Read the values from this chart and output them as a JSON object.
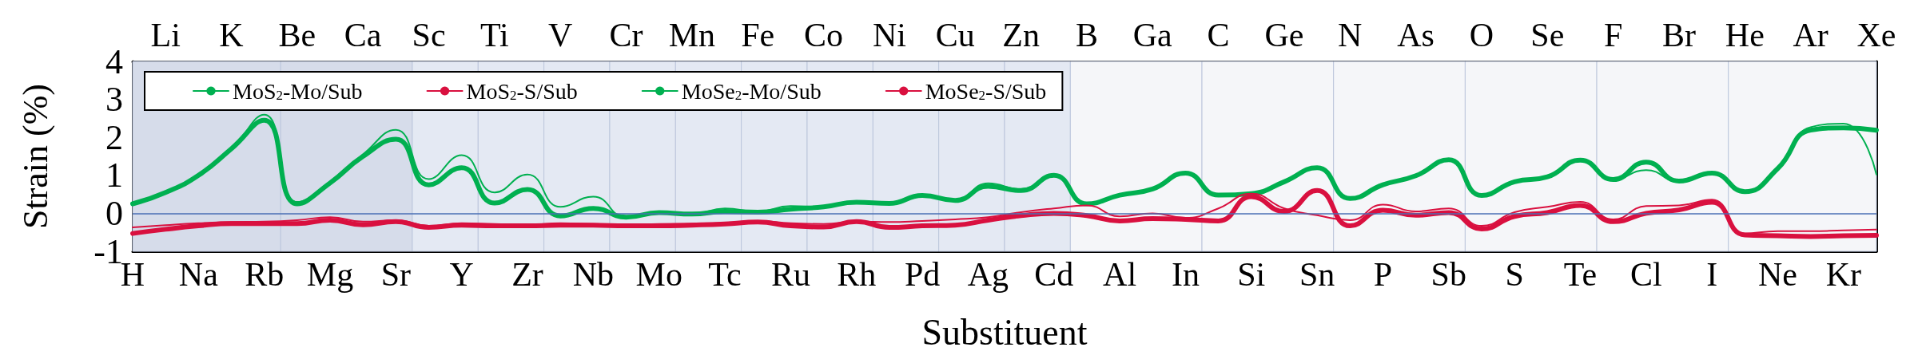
{
  "chart_data": {
    "type": "line",
    "xlabel": "Substituent",
    "ylabel": "Strain (%)",
    "categories": [
      "H",
      "Li",
      "Na",
      "K",
      "Rb",
      "Be",
      "Mg",
      "Ca",
      "Sr",
      "Sc",
      "Y",
      "Ti",
      "Zr",
      "V",
      "Nb",
      "Cr",
      "Mo",
      "Mn",
      "Tc",
      "Fe",
      "Ru",
      "Co",
      "Rh",
      "Ni",
      "Pd",
      "Cu",
      "Ag",
      "Zn",
      "Cd",
      "B",
      "Al",
      "Ga",
      "In",
      "C",
      "Si",
      "Ge",
      "Sn",
      "N",
      "P",
      "As",
      "Sb",
      "O",
      "S",
      "Se",
      "Te",
      "F",
      "Cl",
      "Br",
      "I",
      "He",
      "Ne",
      "Ar",
      "Kr",
      "Xe"
    ],
    "ylim": [
      -1,
      4
    ],
    "yticks": [
      -1,
      0,
      1,
      2,
      3,
      4
    ],
    "series": [
      {
        "name": "MoS$_{2}$-Mo/Sub",
        "color": "#00b050",
        "values": [
          0.25,
          0.55,
          1.0,
          1.7,
          2.6,
          0.3,
          0.8,
          1.55,
          2.2,
          0.9,
          1.53,
          0.55,
          1.02,
          0.17,
          0.44,
          -0.1,
          0.02,
          -0.02,
          0.13,
          0.05,
          0.19,
          0.17,
          0.29,
          0.26,
          0.47,
          0.34,
          0.79,
          0.64,
          1.0,
          0.25,
          0.48,
          0.64,
          1.06,
          0.48,
          0.52,
          0.83,
          1.2,
          0.39,
          0.77,
          0.99,
          1.41,
          0.47,
          0.83,
          0.96,
          1.4,
          0.89,
          1.14,
          0.83,
          1.06,
          0.57,
          1.18,
          2.27,
          2.36,
          1.02
        ]
      },
      {
        "name": "MoS$_{2}$-S/Sub",
        "color": "#d9103f",
        "values": [
          -0.37,
          -0.31,
          -0.26,
          -0.23,
          -0.22,
          -0.18,
          -0.1,
          -0.22,
          -0.18,
          -0.33,
          -0.26,
          -0.28,
          -0.3,
          -0.26,
          -0.28,
          -0.31,
          -0.28,
          -0.27,
          -0.25,
          -0.2,
          -0.26,
          -0.28,
          -0.22,
          -0.23,
          -0.2,
          -0.16,
          -0.1,
          0.03,
          0.13,
          0.21,
          -0.08,
          0,
          -0.12,
          0.13,
          0.52,
          0.13,
          -0.05,
          -0.18,
          0.23,
          0.05,
          0.13,
          -0.33,
          0.03,
          0.17,
          0.3,
          -0.16,
          0.19,
          0.21,
          0.36,
          -0.53,
          -0.47,
          -0.47,
          -0.45,
          -0.43
        ]
      },
      {
        "name": "MoSe$_{2}$-Mo/Sub",
        "color": "#00b050",
        "values": [
          0.25,
          0.55,
          1.0,
          1.7,
          2.45,
          0.25,
          0.8,
          1.5,
          1.95,
          0.75,
          1.2,
          0.27,
          0.63,
          -0.07,
          0.13,
          -0.1,
          0.02,
          -0.02,
          0.05,
          0.03,
          0.11,
          0.17,
          0.29,
          0.26,
          0.47,
          0.34,
          0.71,
          0.6,
          1.0,
          0.25,
          0.48,
          0.64,
          1.06,
          0.48,
          0.52,
          0.83,
          1.2,
          0.39,
          0.75,
          0.99,
          1.41,
          0.47,
          0.83,
          0.96,
          1.4,
          0.89,
          1.35,
          0.85,
          1.06,
          0.57,
          1.18,
          2.19,
          2.25,
          2.19
        ]
      },
      {
        "name": "MoSe$_{2}$-S/Sub",
        "color": "#d9103f",
        "values": [
          -0.53,
          -0.42,
          -0.33,
          -0.27,
          -0.27,
          -0.27,
          -0.18,
          -0.3,
          -0.22,
          -0.37,
          -0.31,
          -0.33,
          -0.33,
          -0.31,
          -0.31,
          -0.33,
          -0.33,
          -0.31,
          -0.28,
          -0.23,
          -0.33,
          -0.36,
          -0.22,
          -0.37,
          -0.33,
          -0.31,
          -0.18,
          -0.06,
          0,
          -0.06,
          -0.2,
          -0.14,
          -0.16,
          -0.2,
          0.44,
          0.05,
          0.6,
          -0.33,
          0.08,
          -0.05,
          0.02,
          -0.41,
          -0.08,
          0.02,
          0.21,
          -0.22,
          0,
          0.09,
          0.29,
          -0.57,
          -0.59,
          -0.61,
          -0.59,
          -0.58
        ]
      }
    ],
    "ref_lines": [
      {
        "axis": "y",
        "value": 0,
        "color": "#4a6fb5"
      }
    ],
    "bands": [
      {
        "axis": "x",
        "from": "H",
        "to": "Rb",
        "color": "#d6dcea"
      },
      {
        "axis": "x",
        "from": "Be",
        "to": "Sr",
        "color": "#d6dcea"
      },
      {
        "axis": "x",
        "from": "Sc",
        "to": "Y",
        "color": "#e4e9f3"
      },
      {
        "axis": "x",
        "from": "Ti",
        "to": "Zr",
        "color": "#e4e9f3"
      },
      {
        "axis": "x",
        "from": "V",
        "to": "Nb",
        "color": "#e4e9f3"
      },
      {
        "axis": "x",
        "from": "Cr",
        "to": "Mo",
        "color": "#e4e9f3"
      },
      {
        "axis": "x",
        "from": "Mn",
        "to": "Tc",
        "color": "#e4e9f3"
      },
      {
        "axis": "x",
        "from": "Fe",
        "to": "Ru",
        "color": "#e4e9f3"
      },
      {
        "axis": "x",
        "from": "Co",
        "to": "Rh",
        "color": "#e4e9f3"
      },
      {
        "axis": "x",
        "from": "Ni",
        "to": "Pd",
        "color": "#e4e9f3"
      },
      {
        "axis": "x",
        "from": "Cu",
        "to": "Ag",
        "color": "#e4e9f3"
      },
      {
        "axis": "x",
        "from": "Zn",
        "to": "Cd",
        "color": "#e4e9f3"
      },
      {
        "axis": "x",
        "from": "B",
        "to": "In",
        "color": "#f5f6f9"
      },
      {
        "axis": "x",
        "from": "C",
        "to": "Sn",
        "color": "#f5f6f9"
      },
      {
        "axis": "x",
        "from": "N",
        "to": "Sb",
        "color": "#f5f6f9"
      },
      {
        "axis": "x",
        "from": "O",
        "to": "Te",
        "color": "#f5f6f9"
      },
      {
        "axis": "x",
        "from": "F",
        "to": "I",
        "color": "#f5f6f9"
      },
      {
        "axis": "x",
        "from": "He",
        "to": "Xe",
        "color": "#f5f6f9"
      }
    ],
    "legend": "top left",
    "marker": "none",
    "line_style": "solid"
  }
}
